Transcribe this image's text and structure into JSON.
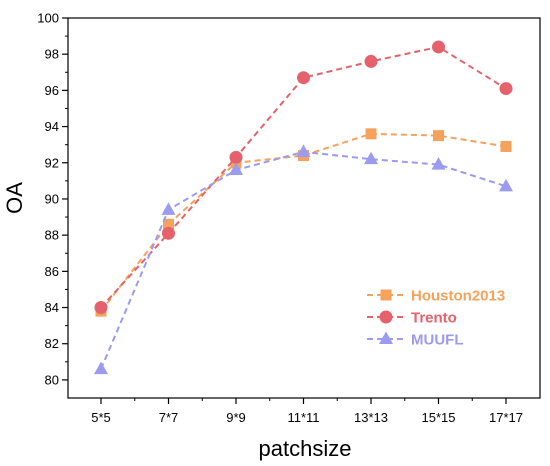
{
  "chart_data": {
    "type": "line",
    "xlabel": "patchsize",
    "ylabel": "OA",
    "categories": [
      "5*5",
      "7*7",
      "9*9",
      "11*11",
      "13*13",
      "15*15",
      "17*17"
    ],
    "ylim": [
      79,
      100
    ],
    "yticks": [
      80,
      82,
      84,
      86,
      88,
      90,
      92,
      94,
      96,
      98,
      100
    ],
    "grid": false,
    "legend_position": "bottom-right",
    "series": [
      {
        "name": "Houston2013",
        "color": "#f5a35c",
        "marker": "square",
        "values": [
          83.8,
          88.6,
          92.0,
          92.4,
          93.6,
          93.5,
          92.9
        ]
      },
      {
        "name": "Trento",
        "color": "#e5626c",
        "marker": "circle",
        "values": [
          84.0,
          88.1,
          92.3,
          96.7,
          97.6,
          98.4,
          96.1
        ]
      },
      {
        "name": "MUUFL",
        "color": "#9b9bef",
        "marker": "triangle",
        "values": [
          80.6,
          89.4,
          91.6,
          92.6,
          92.2,
          91.9,
          90.7
        ]
      }
    ]
  }
}
